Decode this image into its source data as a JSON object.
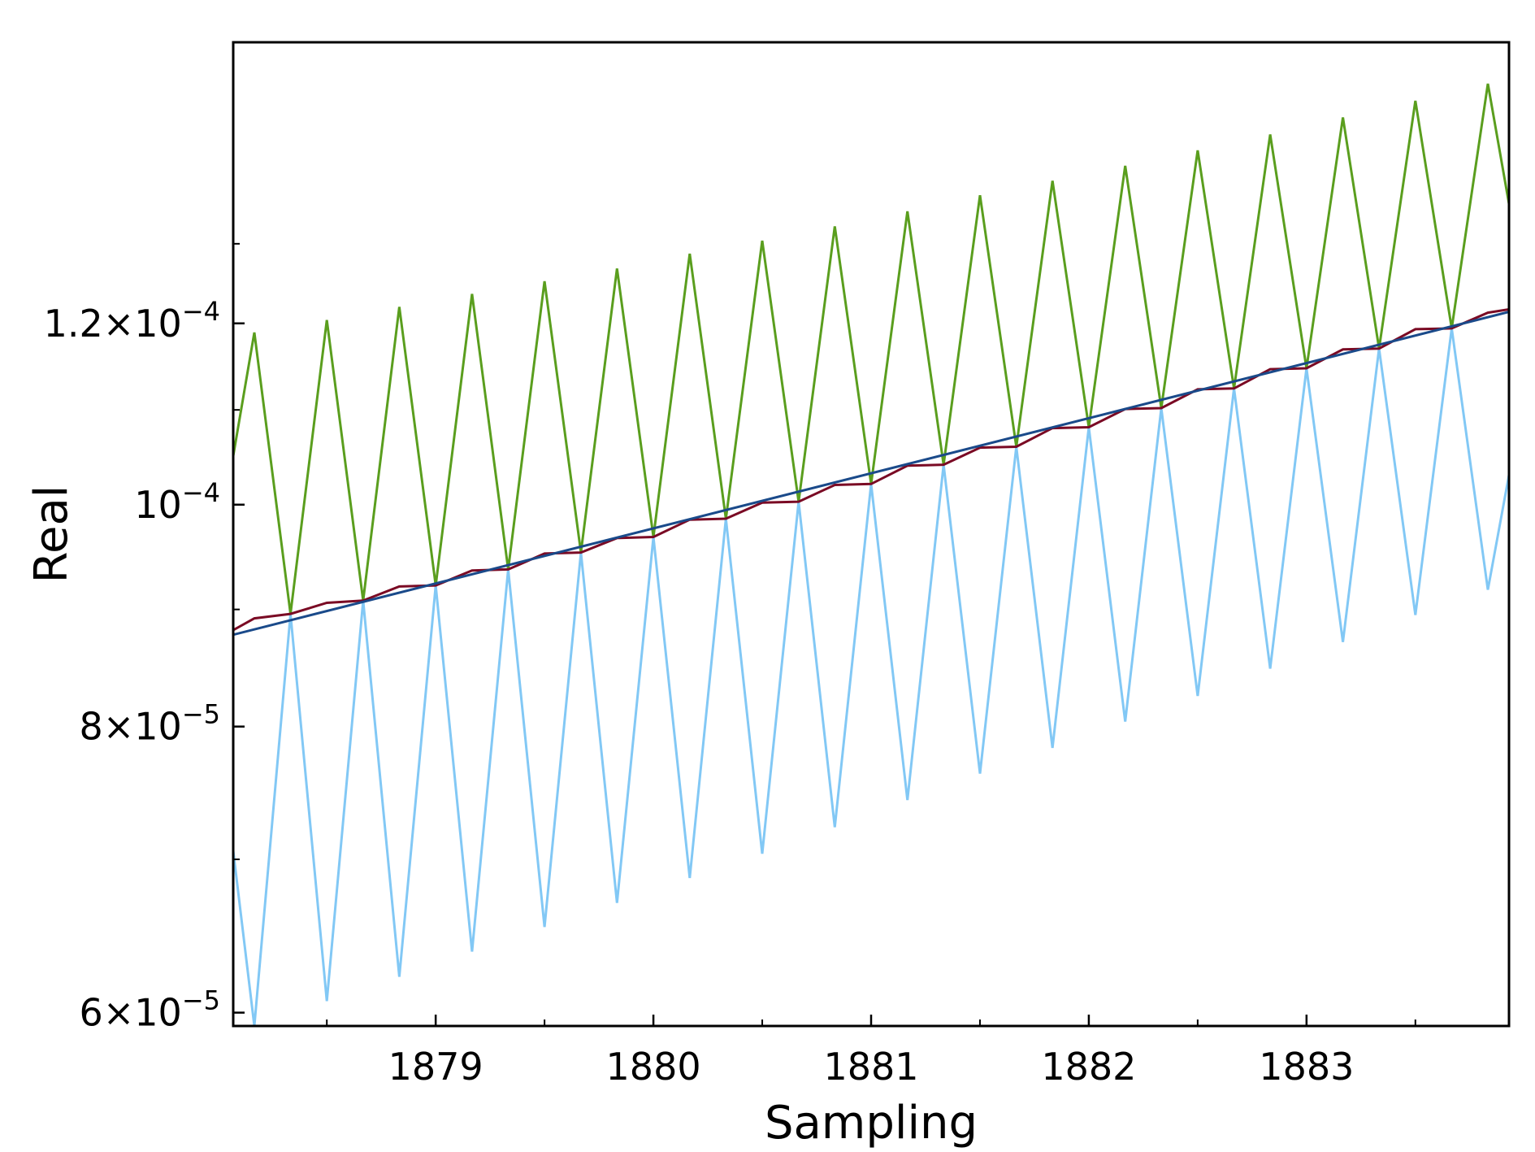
{
  "chart_data": {
    "type": "line",
    "title": "",
    "xlabel": "Sampling",
    "ylabel": "Real",
    "xlim": [
      1878.07,
      1883.93
    ],
    "ylim": [
      5.92e-05,
      0.0001592
    ],
    "yscale": "log",
    "grid": false,
    "legend": "none",
    "x_ticks": [
      {
        "value": 1879,
        "label": "1879"
      },
      {
        "value": 1880,
        "label": "1880"
      },
      {
        "value": 1881,
        "label": "1881"
      },
      {
        "value": 1882,
        "label": "1882"
      },
      {
        "value": 1883,
        "label": "1883"
      }
    ],
    "x_minor_ticks": [
      1878.5,
      1879.5,
      1880.5,
      1881.5,
      1882.5,
      1883.5
    ],
    "y_ticks": [
      {
        "value": 6e-05,
        "base": "6×10",
        "exp": "−5"
      },
      {
        "value": 8e-05,
        "base": "8×10",
        "exp": "−5"
      },
      {
        "value": 0.0001,
        "base": "10",
        "exp": "−4"
      },
      {
        "value": 0.00012,
        "base": "1.2×10",
        "exp": "−4"
      }
    ],
    "y_minor_ticks": [
      7e-05,
      9e-05,
      0.00011,
      0.00013
    ],
    "series": [
      {
        "color": "#5a9e1e",
        "x": [
          1878.0,
          1878.167,
          1878.333,
          1878.5,
          1878.667,
          1878.833,
          1879.0,
          1879.167,
          1879.333,
          1879.5,
          1879.667,
          1879.833,
          1880.0,
          1880.167,
          1880.333,
          1880.5,
          1880.667,
          1880.833,
          1881.0,
          1881.167,
          1881.333,
          1881.5,
          1881.667,
          1881.833,
          1882.0,
          1882.167,
          1882.333,
          1882.5,
          1882.667,
          1882.833,
          1883.0,
          1883.167,
          1883.333,
          1883.5,
          1883.667,
          1883.833,
          1884.0
        ],
        "values": [
          9.6e-05,
          0.0001189,
          8.96e-05,
          0.0001204,
          9.08e-05,
          0.000122,
          9.22e-05,
          0.0001236,
          9.37e-05,
          0.0001252,
          9.53e-05,
          0.0001268,
          9.68e-05,
          0.0001287,
          9.86e-05,
          0.0001304,
          0.0001003,
          0.0001323,
          0.0001021,
          0.0001343,
          0.0001041,
          0.0001365,
          0.000106,
          0.0001385,
          0.0001081,
          0.0001406,
          0.0001102,
          0.0001428,
          0.0001124,
          0.0001451,
          0.0001147,
          0.0001476,
          0.000117,
          0.0001501,
          0.0001194,
          0.0001527,
          0.000124
        ]
      },
      {
        "color": "#82c8f5",
        "x": [
          1878.0,
          1878.167,
          1878.333,
          1878.5,
          1878.667,
          1878.833,
          1879.0,
          1879.167,
          1879.333,
          1879.5,
          1879.667,
          1879.833,
          1880.0,
          1880.167,
          1880.333,
          1880.5,
          1880.667,
          1880.833,
          1881.0,
          1881.167,
          1881.333,
          1881.5,
          1881.667,
          1881.833,
          1882.0,
          1882.167,
          1882.333,
          1882.5,
          1882.667,
          1882.833,
          1883.0,
          1883.167,
          1883.333,
          1883.5,
          1883.667,
          1883.833,
          1884.0
        ],
        "values": [
          8.02e-05,
          5.92e-05,
          8.96e-05,
          6.07e-05,
          9.08e-05,
          6.22e-05,
          9.22e-05,
          6.38e-05,
          9.37e-05,
          6.54e-05,
          9.53e-05,
          6.7e-05,
          9.68e-05,
          6.87e-05,
          9.86e-05,
          7.04e-05,
          0.0001003,
          7.23e-05,
          0.0001021,
          7.43e-05,
          0.0001041,
          7.63e-05,
          0.000106,
          7.83e-05,
          0.0001081,
          8.04e-05,
          0.0001102,
          8.25e-05,
          0.0001124,
          8.48e-05,
          0.0001147,
          8.71e-05,
          0.000117,
          8.95e-05,
          0.0001194,
          9.18e-05,
          0.000112
        ]
      },
      {
        "color": "#7a0a24",
        "x": [
          1878.0,
          1878.167,
          1878.333,
          1878.5,
          1878.667,
          1878.833,
          1879.0,
          1879.167,
          1879.333,
          1879.5,
          1879.667,
          1879.833,
          1880.0,
          1880.167,
          1880.333,
          1880.5,
          1880.667,
          1880.833,
          1881.0,
          1881.167,
          1881.333,
          1881.5,
          1881.667,
          1881.833,
          1882.0,
          1882.167,
          1882.333,
          1882.5,
          1882.667,
          1882.833,
          1883.0,
          1883.167,
          1883.333,
          1883.5,
          1883.667,
          1883.833,
          1883.93
        ],
        "values": [
          8.74e-05,
          8.92e-05,
          8.96e-05,
          9.06e-05,
          9.08e-05,
          9.21e-05,
          9.22e-05,
          9.36e-05,
          9.37e-05,
          9.52e-05,
          9.53e-05,
          9.67e-05,
          9.68e-05,
          9.85e-05,
          9.86e-05,
          0.0001002,
          0.0001003,
          0.000102,
          0.0001021,
          0.000104,
          0.0001041,
          0.0001059,
          0.000106,
          0.000108,
          0.0001081,
          0.0001101,
          0.0001102,
          0.0001123,
          0.0001124,
          0.0001146,
          0.0001147,
          0.0001169,
          0.000117,
          0.0001193,
          0.0001194,
          0.0001213,
          0.0001217
        ]
      },
      {
        "color": "#1a4a8a",
        "x": [
          1878.0,
          1883.93
        ],
        "values": [
          8.74e-05,
          0.0001214
        ]
      }
    ]
  }
}
